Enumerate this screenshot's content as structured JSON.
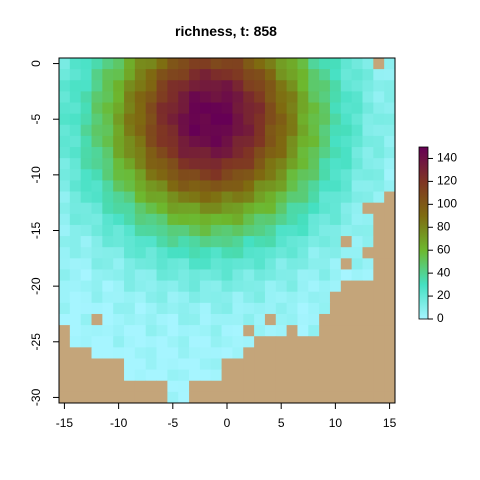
{
  "chart_data": {
    "type": "heatmap",
    "title": "richness, t: 858",
    "xlabel": "",
    "ylabel": "",
    "xlim": [
      -15.5,
      15.5
    ],
    "ylim": [
      -30.5,
      0.5
    ],
    "x_ticks": [
      -15,
      -10,
      -5,
      0,
      5,
      10,
      15
    ],
    "x_tick_labels": [
      "-15",
      "-10",
      "-5",
      "0",
      "5",
      "10",
      "15"
    ],
    "y_ticks": [
      0,
      -5,
      -10,
      -15,
      -20,
      -25,
      -30
    ],
    "y_tick_labels": [
      "0",
      "-5",
      "-10",
      "-15",
      "-20",
      "-25",
      "-30"
    ],
    "colorbar": {
      "min": 0,
      "max": 150,
      "ticks": [
        0,
        20,
        40,
        60,
        80,
        100,
        120,
        140
      ],
      "tick_labels": [
        "0",
        "20",
        "40",
        "60",
        "80",
        "100",
        "120",
        "140"
      ],
      "colors": [
        "#A6F5FF",
        "#45E0C2",
        "#6DB82E",
        "#7F6B10",
        "#7F3424",
        "#660055"
      ]
    },
    "land_color": "#C4A57A",
    "grid": false,
    "legend": "colorbar-right",
    "center": {
      "x": -1.5,
      "y": -5
    },
    "peak": 150
  }
}
